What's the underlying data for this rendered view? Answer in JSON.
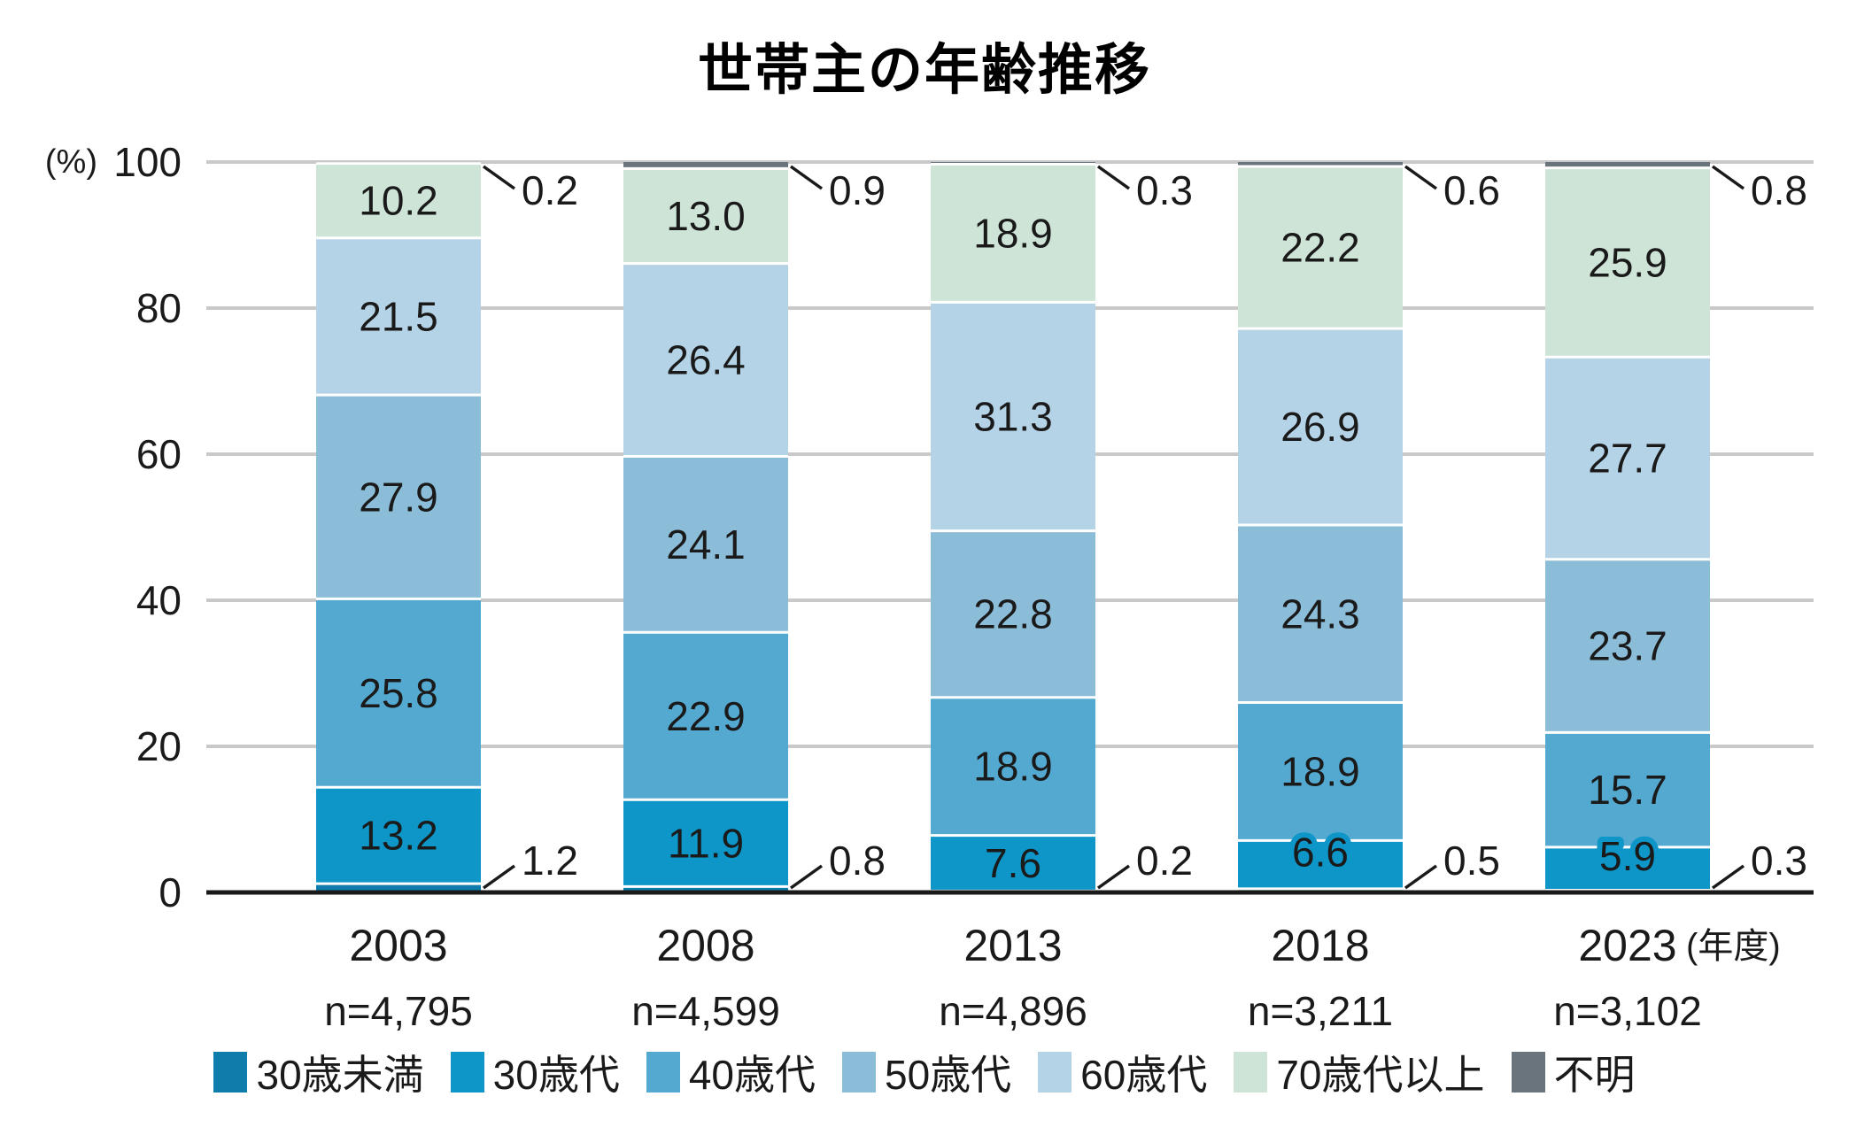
{
  "title": "世帯主の年齢推移",
  "y_axis_unit": "(%)",
  "x_axis_unit": "(年度)",
  "chart_data": {
    "type": "bar",
    "stacked": true,
    "title": "世帯主の年齢推移",
    "ylabel": "(%)",
    "ylim": [
      0,
      100
    ],
    "y_ticks": [
      0,
      20,
      40,
      60,
      80,
      100
    ],
    "grid": true,
    "legend_position": "bottom",
    "x_axis_suffix": "(年度)",
    "categories": [
      "2003",
      "2008",
      "2013",
      "2018",
      "2023"
    ],
    "category_n_labels": [
      "n=4,795",
      "n=4,599",
      "n=4,896",
      "n=3,211",
      "n=3,102"
    ],
    "series": [
      {
        "name": "30歳未満",
        "color": "#0e7dac",
        "label_mode": "callout-bottom",
        "values": [
          1.2,
          0.8,
          0.2,
          0.5,
          0.3
        ]
      },
      {
        "name": "30歳代",
        "color": "#0d96c7",
        "label_mode": "inside",
        "text_color": "#ffffff",
        "outline": true,
        "values": [
          13.2,
          11.9,
          7.6,
          6.6,
          5.9
        ]
      },
      {
        "name": "40歳代",
        "color": "#54a9d0",
        "label_mode": "inside",
        "text_color": "#ffffff",
        "values": [
          25.8,
          22.9,
          18.9,
          18.9,
          15.7
        ]
      },
      {
        "name": "50歳代",
        "color": "#8bbdd9",
        "label_mode": "inside",
        "text_color": "#1a1a1a",
        "values": [
          27.9,
          24.1,
          22.8,
          24.3,
          23.7
        ]
      },
      {
        "name": "60歳代",
        "color": "#b5d3e7",
        "label_mode": "inside",
        "text_color": "#1a1a1a",
        "values": [
          21.5,
          26.4,
          31.3,
          26.9,
          27.7
        ]
      },
      {
        "name": "70歳代以上",
        "color": "#cde4d7",
        "label_mode": "inside",
        "text_color": "#1a1a1a",
        "values": [
          10.2,
          13.0,
          18.9,
          22.2,
          25.9
        ]
      },
      {
        "name": "不明",
        "color": "#6a747d",
        "label_mode": "callout-top",
        "values": [
          0.2,
          0.9,
          0.3,
          0.6,
          0.8
        ]
      }
    ],
    "colors": {
      "grid": "#c9c9c9",
      "baseline": "#1a1a1a",
      "text": "#1a1a1a"
    }
  }
}
